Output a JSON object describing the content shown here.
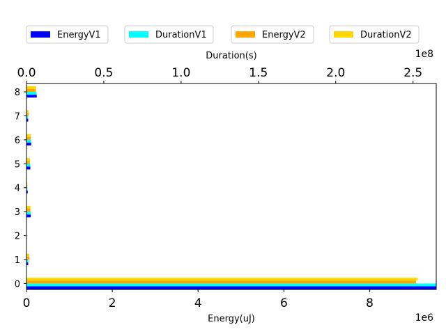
{
  "chart_data": {
    "type": "bar",
    "orientation": "horizontal",
    "categories": [
      "0",
      "1",
      "2",
      "3",
      "4",
      "5",
      "6",
      "7",
      "8"
    ],
    "series": [
      {
        "name": "EnergyV1",
        "axis": "bottom",
        "color": "#0000ff",
        "values": [
          9600000,
          40000,
          5000,
          100000,
          30000,
          90000,
          110000,
          40000,
          240000
        ]
      },
      {
        "name": "DurationV1",
        "axis": "top",
        "color": "#00ffff",
        "values": [
          265000000,
          1200000,
          150000,
          2800000,
          600000,
          2400000,
          3000000,
          1000000,
          6500000
        ]
      },
      {
        "name": "EnergyV2",
        "axis": "bottom",
        "color": "#ffa500",
        "values": [
          9080000,
          70000,
          5000,
          90000,
          20000,
          80000,
          100000,
          50000,
          220000
        ]
      },
      {
        "name": "DurationV2",
        "axis": "top",
        "color": "#ffd700",
        "values": [
          253000000,
          1800000,
          150000,
          2600000,
          500000,
          2200000,
          2800000,
          1300000,
          6200000
        ]
      }
    ],
    "x_bottom": {
      "label": "Energy(uJ)",
      "ticks": [
        "0",
        "2",
        "4",
        "6",
        "8"
      ],
      "tick_values": [
        0,
        2000000,
        4000000,
        6000000,
        8000000
      ],
      "offset_label": "1e6",
      "range": [
        0,
        9550000
      ]
    },
    "x_top": {
      "label": "Duration(s)",
      "ticks": [
        "0.0",
        "0.5",
        "1.0",
        "1.5",
        "2.0",
        "2.5"
      ],
      "tick_values": [
        0,
        50000000,
        100000000,
        150000000,
        200000000,
        250000000
      ],
      "offset_label": "1e8",
      "range": [
        0,
        265000000
      ]
    },
    "y_ticks": [
      "0",
      "1",
      "2",
      "3",
      "4",
      "5",
      "6",
      "7",
      "8"
    ],
    "y_range": [
      -0.25,
      8.35
    ],
    "legend_placement": "top",
    "grid": false
  }
}
